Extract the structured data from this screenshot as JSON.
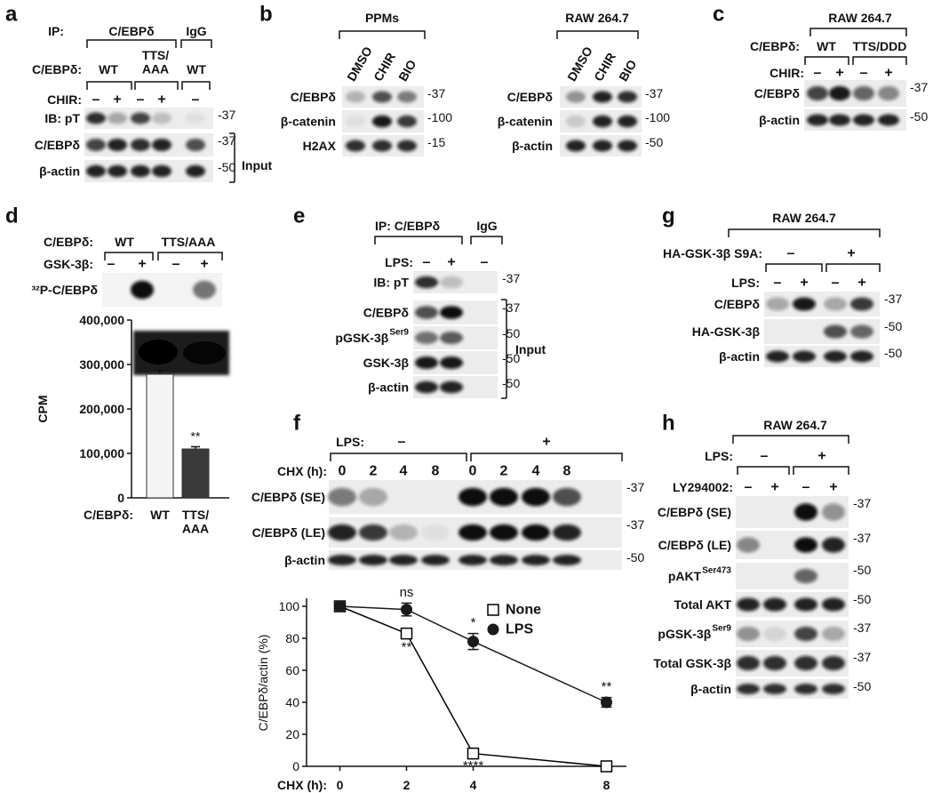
{
  "panels": {
    "a": {
      "letter": "a",
      "ip": [
        "IP:",
        "C/EBPδ",
        "IgG"
      ],
      "construct_label": "C/EBPδ:",
      "constructs": [
        "WT",
        "TTS/\nAAA",
        "WT"
      ],
      "treatment_label": "CHIR:",
      "lanes": [
        "–",
        "+",
        "–",
        "+",
        "–"
      ],
      "rows": [
        {
          "label": "IB: pT",
          "marker": "-37"
        },
        {
          "label": "C/EBPδ",
          "marker": "-37"
        },
        {
          "label": "β-actin",
          "marker": "-50"
        }
      ],
      "bracket_label": "Input"
    },
    "b": {
      "letter": "b",
      "groups": [
        {
          "title": "PPMs",
          "lanes": [
            "DMSO",
            "CHIR",
            "BIO"
          ],
          "rows": [
            {
              "label": "C/EBPδ",
              "marker": "-37"
            },
            {
              "label": "β-catenin",
              "marker": "-100"
            },
            {
              "label": "H2AX",
              "marker": "-15"
            }
          ]
        },
        {
          "title": "RAW 264.7",
          "lanes": [
            "DMSO",
            "CHIR",
            "BIO"
          ],
          "rows": [
            {
              "label": "C/EBPδ",
              "marker": "-37"
            },
            {
              "label": "β-catenin",
              "marker": "-100"
            },
            {
              "label": "β-actin",
              "marker": "-50"
            }
          ]
        }
      ]
    },
    "c": {
      "letter": "c",
      "title": "RAW 264.7",
      "construct_label": "C/EBPδ:",
      "constructs": [
        "WT",
        "TTS/DDD"
      ],
      "treatment_label": "CHIR:",
      "lanes": [
        "–",
        "+",
        "–",
        "+"
      ],
      "rows": [
        {
          "label": "C/EBPδ",
          "marker": "-37"
        },
        {
          "label": "β-actin",
          "marker": "-50"
        }
      ]
    },
    "d": {
      "letter": "d",
      "construct_label": "C/EBPδ:",
      "constructs": [
        "WT",
        "TTS/AAA"
      ],
      "treatment_label": "GSK-3β:",
      "lanes": [
        "–",
        "+",
        "–",
        "+"
      ],
      "rows": [
        {
          "label": "³²P-C/EBPδ"
        }
      ]
    },
    "e": {
      "letter": "e",
      "ip": [
        "IP: C/EBPδ",
        "IgG"
      ],
      "treatment_label": "LPS:",
      "lanes": [
        "–",
        "+",
        "–"
      ],
      "rows": [
        {
          "label": "IB: pT",
          "marker": "-37"
        },
        {
          "label": "C/EBPδ",
          "marker": "-37"
        },
        {
          "label": "pGSK-3β",
          "sup": "Ser9",
          "marker": "-50"
        },
        {
          "label": "GSK-3β",
          "marker": "-50"
        },
        {
          "label": "β-actin",
          "marker": "-50"
        }
      ],
      "bracket_label": "Input"
    },
    "f": {
      "letter": "f",
      "treatment_label": "LPS:",
      "treatments": [
        "–",
        "+"
      ],
      "time_label": "CHX (h):",
      "lanes": [
        "0",
        "2",
        "4",
        "8",
        "0",
        "2",
        "4",
        "8"
      ],
      "rows": [
        {
          "label": "C/EBPδ (SE)",
          "marker": "-37"
        },
        {
          "label": "C/EBPδ (LE)",
          "marker": "-37"
        },
        {
          "label": "β-actin",
          "marker": "-50"
        }
      ]
    },
    "g": {
      "letter": "g",
      "title": "RAW 264.7",
      "construct_label": "HA-GSK-3β S9A:",
      "constructs": [
        "–",
        "+"
      ],
      "treatment_label": "LPS:",
      "lanes": [
        "–",
        "+",
        "–",
        "+"
      ],
      "rows": [
        {
          "label": "C/EBPδ",
          "marker": "-37"
        },
        {
          "label": "HA-GSK-3β",
          "marker": "-50"
        },
        {
          "label": "β-actin",
          "marker": "-50"
        }
      ]
    },
    "h": {
      "letter": "h",
      "title": "RAW 264.7",
      "treatment_label": "LPS:",
      "treatments": [
        "–",
        "+"
      ],
      "inhibitor_label": "LY294002:",
      "lanes": [
        "–",
        "+",
        "–",
        "+"
      ],
      "rows": [
        {
          "label": "C/EBPδ (SE)",
          "marker": "-37"
        },
        {
          "label": "C/EBPδ (LE)",
          "marker": "-37"
        },
        {
          "label": "pAKT",
          "sup": "Ser473",
          "marker": "-50"
        },
        {
          "label": "Total AKT",
          "marker": "-50"
        },
        {
          "label": "pGSK-3β",
          "sup": "Ser9",
          "marker": "-37"
        },
        {
          "label": "Total GSK-3β",
          "marker": "-37"
        },
        {
          "label": "β-actin",
          "marker": "-50"
        }
      ]
    }
  },
  "chart_data": [
    {
      "type": "bar",
      "xlabel": "C/EBPδ:",
      "ylabel": "CPM",
      "categories": [
        "WT",
        "TTS/\nAAA"
      ],
      "values": [
        278000,
        110000
      ],
      "errors": [
        10000,
        5000
      ],
      "colors": [
        "#f4f4f4",
        "#3a3a3a"
      ],
      "ylim": [
        0,
        400000
      ],
      "yticks": [
        0,
        {
          "value": 100000,
          "label": "100,000"
        },
        {
          "value": 200000,
          "label": "200,000"
        },
        {
          "value": 300000,
          "label": "300,000"
        },
        {
          "value": 400000,
          "label": "400,000"
        }
      ],
      "annotations": [
        "**"
      ]
    },
    {
      "type": "line",
      "xlabel": "CHX (h):",
      "ylabel": "C/EBPδ/actin (%)",
      "x": [
        0,
        2,
        4,
        8
      ],
      "xlim": [
        -1,
        8.6
      ],
      "xticks": [
        0,
        2,
        4,
        8
      ],
      "ylim": [
        0,
        105
      ],
      "yticks": [
        0,
        20,
        40,
        60,
        80,
        100
      ],
      "legend": "upper right",
      "series": [
        {
          "name": "None",
          "color": "#000000",
          "marker": "open-square",
          "values": [
            100,
            83,
            8,
            0
          ],
          "errors": [
            2,
            2,
            1,
            1
          ]
        },
        {
          "name": "LPS",
          "color": "#1a1a1a",
          "marker": "filled-circle",
          "values": [
            100,
            98,
            78,
            40
          ],
          "errors": [
            3,
            4,
            5,
            3
          ]
        }
      ],
      "annotations": [
        "ns",
        "*",
        "**",
        "**",
        "****"
      ]
    }
  ]
}
